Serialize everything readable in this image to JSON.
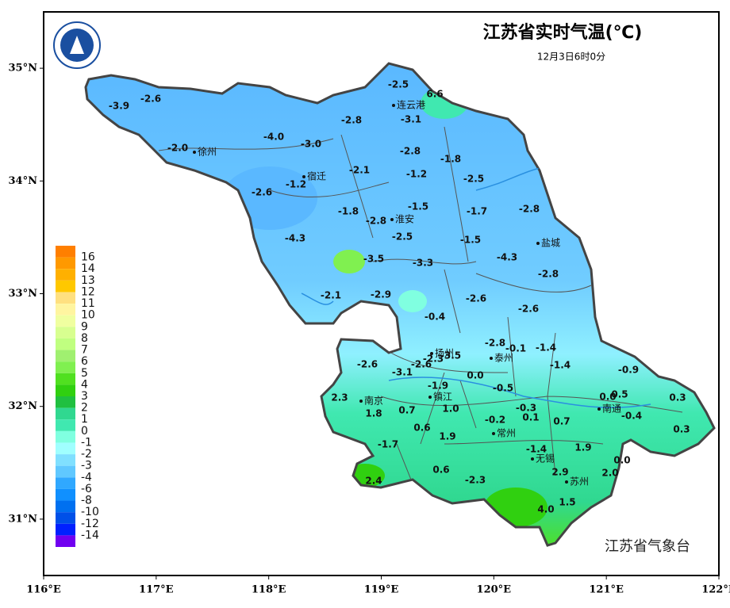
{
  "header": {
    "title": "江苏省实时气温(℃)",
    "subtitle": "12月3日6时0分"
  },
  "axes": {
    "xlim": [
      116,
      122
    ],
    "ylim": [
      30.5,
      35.5
    ],
    "xticks": [
      {
        "value": 116,
        "label": "116°E"
      },
      {
        "value": 117,
        "label": "117°E"
      },
      {
        "value": 118,
        "label": "118°E"
      },
      {
        "value": 119,
        "label": "119°E"
      },
      {
        "value": 120,
        "label": "120°E"
      },
      {
        "value": 121,
        "label": "121°E"
      },
      {
        "value": 122,
        "label": "122°E"
      }
    ],
    "yticks": [
      {
        "value": 31,
        "label": "31°N"
      },
      {
        "value": 32,
        "label": "32°N"
      },
      {
        "value": 33,
        "label": "33°N"
      },
      {
        "value": 34,
        "label": "34°N"
      },
      {
        "value": 35,
        "label": "35°N"
      }
    ]
  },
  "legend": {
    "levels": [
      16,
      14,
      13,
      12,
      11,
      10,
      9,
      8,
      7,
      6,
      5,
      4,
      3,
      2,
      1,
      0,
      -1,
      -2,
      -3,
      -4,
      -6,
      -8,
      -10,
      -12,
      -14
    ],
    "colors": [
      "#ff7f00",
      "#ff9900",
      "#ffb000",
      "#ffc800",
      "#ffe080",
      "#fff5a0",
      "#f0ffa0",
      "#d8ff90",
      "#c0ff80",
      "#a0f070",
      "#80f050",
      "#50e020",
      "#30d010",
      "#20c040",
      "#30d890",
      "#40e8b0",
      "#80ffe0",
      "#a0ffff",
      "#80e0ff",
      "#60c8ff",
      "#30a8ff",
      "#1090ff",
      "#0070f0",
      "#0050e8",
      "#0020ff",
      "#7000f0"
    ]
  },
  "stations": {
    "temperatures": [
      "-2.5",
      "6.6",
      "-3.9",
      "-2.6",
      "-3.1",
      "-2.8",
      "-4.0",
      "-3.0",
      "-2.0",
      "-2.8",
      "-1.8",
      "-2.1",
      "-1.2",
      "-2.5",
      "-1.2",
      "-2.6",
      "-1.5",
      "-1.8",
      "-1.7",
      "-2.8",
      "-2.8",
      "-2.5",
      "-4.3",
      "-1.5",
      "-4.3",
      "-3.5",
      "-3.3",
      "-2.8",
      "-2.1",
      "-2.9",
      "-2.6",
      "-2.6",
      "-0.4",
      "-2.8",
      "-0.1",
      "-1.4",
      "-2.6",
      "-2.3",
      "-3.5",
      "-2.6",
      "-3.1",
      "-1.4",
      "-0.9",
      "0.0",
      "-1.9",
      "-0.5",
      "2.3",
      "0.0",
      "0.5",
      "0.3",
      "1.8",
      "0.7",
      "1.0",
      "-0.3",
      "-0.2",
      "0.1",
      "0.7",
      "-0.4",
      "0.3",
      "0.6",
      "1.9",
      "-1.7",
      "-1.4",
      "1.9",
      "0.0",
      "0.6",
      "2.9",
      "2.0",
      "2.4",
      "-2.3",
      "1.5",
      "4.0"
    ]
  },
  "cities": [
    "连云港",
    "徐州",
    "宿迁",
    "淮安",
    "盐城",
    "扬州",
    "泰州",
    "南京",
    "镇江",
    "常州",
    "南通",
    "无锡",
    "苏州"
  ],
  "footer": "江苏省气象台"
}
